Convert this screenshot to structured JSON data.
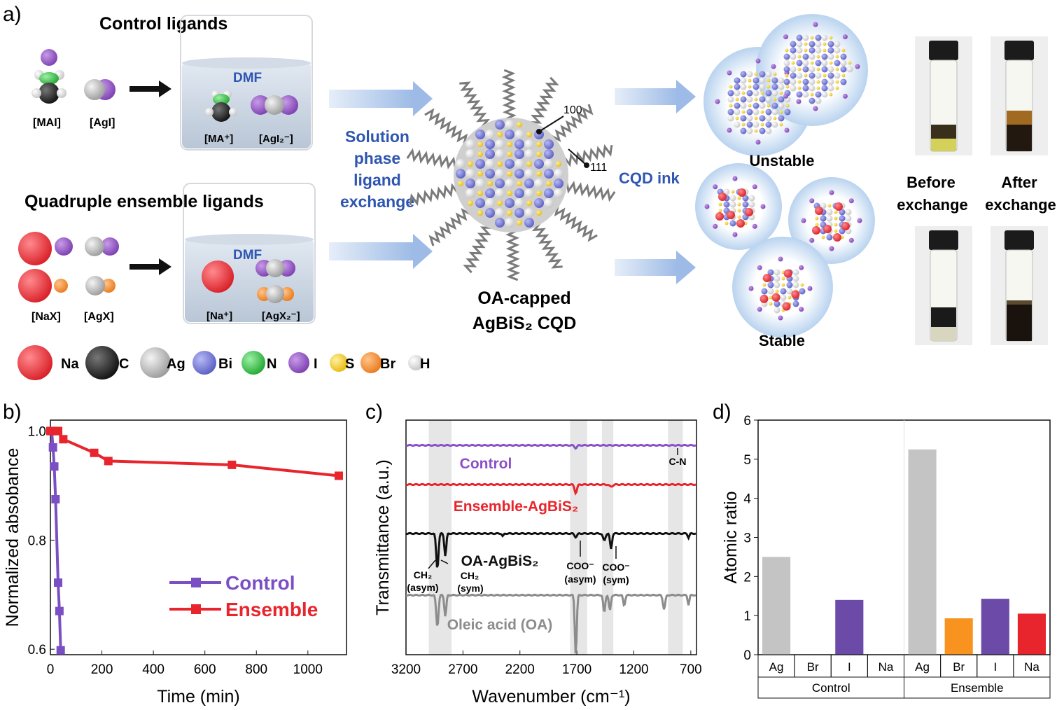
{
  "panel_labels": {
    "a": "a)",
    "b": "b)",
    "c": "c)",
    "d": "d)"
  },
  "panel_a": {
    "control_title": "Control ligands",
    "ensemble_title": "Quadruple ensemble ligands",
    "control_species": [
      "[MAI]",
      "[AgI]"
    ],
    "control_solution_species": [
      "[MA⁺]",
      "[AgI₂⁻]"
    ],
    "ensemble_species": [
      "[NaX]",
      "[AgX]"
    ],
    "ensemble_solution_species": [
      "[Na⁺]",
      "[AgX₂⁻]"
    ],
    "solvent": "DMF",
    "exchange_text": [
      "Solution",
      "phase",
      "ligand",
      "exchange"
    ],
    "facet_100": "100",
    "facet_111": "111",
    "qd_caption": [
      "OA-capped",
      "AgBiS₂ CQD"
    ],
    "ink_label": "CQD ink",
    "unstable_label": "Unstable",
    "stable_label": "Stable",
    "vial_labels": [
      [
        "Before",
        "exchange"
      ],
      [
        "After",
        "exchange"
      ]
    ],
    "legend": [
      {
        "name": "Na",
        "color": "#e8323a"
      },
      {
        "name": "C",
        "color": "#2b2b2b"
      },
      {
        "name": "Ag",
        "color": "#bdbdbd"
      },
      {
        "name": "Bi",
        "color": "#7b7fd6"
      },
      {
        "name": "N",
        "color": "#3cc24a"
      },
      {
        "name": "I",
        "color": "#9b59c6"
      },
      {
        "name": "S",
        "color": "#f4cc2a"
      },
      {
        "name": "Br",
        "color": "#f59a48"
      },
      {
        "name": "H",
        "color": "#d9d9d9"
      }
    ]
  },
  "chart_data": [
    {
      "type": "line",
      "xlabel": "Time (min)",
      "ylabel": "Normalized absobance",
      "xlim": [
        0,
        1150
      ],
      "ylim": [
        0.59,
        1.02
      ],
      "xticks": [
        0,
        200,
        400,
        600,
        800,
        1000
      ],
      "yticks": [
        0.6,
        0.8,
        1.0
      ],
      "ytick_labels": [
        "0.6",
        "0.8",
        "1.0"
      ],
      "legend_position": "bottom-right",
      "series": [
        {
          "name": "Control",
          "color": "#7b4fc4",
          "x": [
            5,
            10,
            15,
            20,
            30,
            35,
            40
          ],
          "y": [
            1.0,
            0.97,
            0.935,
            0.875,
            0.722,
            0.67,
            0.598
          ]
        },
        {
          "name": "Ensemble",
          "color": "#e8242c",
          "x": [
            0,
            10,
            20,
            30,
            50,
            170,
            225,
            705,
            1120
          ],
          "y": [
            1.0,
            1.0,
            1.0,
            1.0,
            0.985,
            0.96,
            0.945,
            0.938,
            0.918
          ]
        }
      ]
    },
    {
      "type": "line",
      "xlabel": "Wavenumber (cm⁻¹)",
      "ylabel": "Transmittance (a.u.)",
      "xlim": [
        3200,
        650
      ],
      "xticks": [
        3200,
        2700,
        2200,
        1700,
        1200,
        700
      ],
      "highlight_bands": [
        [
          3000,
          2800
        ],
        [
          1760,
          1610
        ],
        [
          1480,
          1380
        ],
        [
          900,
          770
        ]
      ],
      "series": [
        {
          "name": "Control",
          "color": "#8a4fc9"
        },
        {
          "name": "Ensemble-AgBiS₂",
          "color": "#e8242c"
        },
        {
          "name": "OA-AgBiS₂",
          "color": "#111111"
        },
        {
          "name": "Oleic acid (OA)",
          "color": "#8c8c8c"
        }
      ],
      "annotations": [
        "C-N",
        "CH₂",
        "(asym)",
        "CH₂",
        "(sym)",
        "COO⁻",
        "(asym)",
        "COO⁻",
        "(sym)"
      ]
    },
    {
      "type": "bar",
      "xlabel": "",
      "ylabel": "Atomic ratio",
      "ylim": [
        0,
        6
      ],
      "yticks": [
        0,
        1,
        2,
        3,
        4,
        5,
        6
      ],
      "groups": [
        "Control",
        "Ensemble"
      ],
      "categories": [
        "Ag",
        "Br",
        "I",
        "Na"
      ],
      "series": [
        {
          "name": "Control",
          "values": [
            2.5,
            0,
            1.4,
            0
          ],
          "colors": [
            "#c4c4c4",
            "#f7931e",
            "#6b4aa8",
            "#e8242c"
          ]
        },
        {
          "name": "Ensemble",
          "values": [
            5.25,
            0.93,
            1.43,
            1.05
          ],
          "colors": [
            "#c4c4c4",
            "#f7931e",
            "#6b4aa8",
            "#e8242c"
          ]
        }
      ]
    }
  ]
}
